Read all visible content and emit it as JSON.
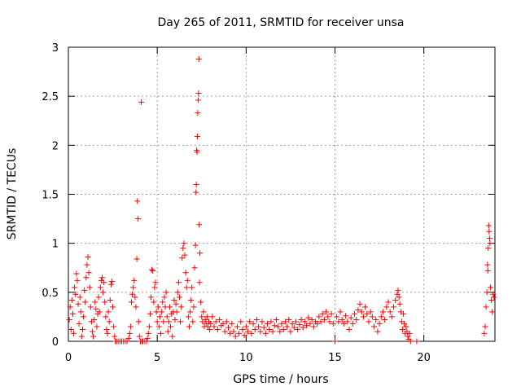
{
  "chart_data": {
    "type": "scatter",
    "title": "Day 265 of 2011, SRMTID for receiver unsa",
    "xlabel": "GPS time / hours",
    "ylabel": "SRMTID / TECUs",
    "xlim": [
      0,
      24
    ],
    "ylim": [
      0,
      3
    ],
    "xticks": [
      0,
      5,
      10,
      15,
      20
    ],
    "yticks": [
      0,
      0.5,
      1,
      1.5,
      2,
      2.5,
      3
    ],
    "xtick_labels": [
      "0",
      "5",
      "10",
      "15",
      "20"
    ],
    "ytick_labels": [
      "0",
      "0.5",
      "1",
      "1.5",
      "2",
      "2.5",
      "3"
    ],
    "grid": true,
    "marker": "+",
    "series": [
      {
        "name": "SRMTID",
        "color": "#ff0000",
        "points": [
          [
            0.05,
            0.22
          ],
          [
            0.1,
            0.35
          ],
          [
            0.15,
            0.12
          ],
          [
            0.2,
            0.42
          ],
          [
            0.25,
            0.28
          ],
          [
            0.3,
            0.08
          ],
          [
            0.35,
            0.55
          ],
          [
            0.4,
            0.48
          ],
          [
            0.45,
            0.69
          ],
          [
            0.5,
            0.62
          ],
          [
            0.55,
            0.38
          ],
          [
            0.6,
            0.18
          ],
          [
            0.65,
            0.45
          ],
          [
            0.7,
            0.3
          ],
          [
            0.75,
            0.05
          ],
          [
            0.8,
            0.12
          ],
          [
            0.85,
            0.25
          ],
          [
            0.9,
            0.52
          ],
          [
            0.95,
            0.4
          ],
          [
            1.0,
            0.65
          ],
          [
            1.05,
            0.78
          ],
          [
            1.1,
            0.86
          ],
          [
            1.15,
            0.7
          ],
          [
            1.2,
            0.55
          ],
          [
            1.25,
            0.35
          ],
          [
            1.3,
            0.2
          ],
          [
            1.35,
            0.1
          ],
          [
            1.4,
            0.05
          ],
          [
            1.45,
            0.22
          ],
          [
            1.5,
            0.4
          ],
          [
            1.55,
            0.33
          ],
          [
            1.6,
            0.15
          ],
          [
            1.65,
            0.28
          ],
          [
            1.7,
            0.45
          ],
          [
            1.75,
            0.3
          ],
          [
            1.8,
            0.55
          ],
          [
            1.85,
            0.62
          ],
          [
            1.9,
            0.65
          ],
          [
            1.95,
            0.5
          ],
          [
            2.0,
            0.6
          ],
          [
            2.05,
            0.4
          ],
          [
            2.1,
            0.25
          ],
          [
            2.15,
            0.12
          ],
          [
            2.2,
            0.08
          ],
          [
            2.25,
            0.3
          ],
          [
            2.3,
            0.2
          ],
          [
            2.35,
            0.42
          ],
          [
            2.4,
            0.58
          ],
          [
            2.45,
            0.61
          ],
          [
            2.5,
            0.35
          ],
          [
            2.55,
            0.15
          ],
          [
            2.6,
            0.05
          ],
          [
            2.65,
            0.0
          ],
          [
            2.7,
            0.0
          ],
          [
            2.8,
            0.0
          ],
          [
            2.9,
            0.0
          ],
          [
            3.0,
            0.0
          ],
          [
            3.1,
            0.0
          ],
          [
            3.2,
            0.0
          ],
          [
            3.3,
            0.0
          ],
          [
            3.4,
            0.03
          ],
          [
            3.45,
            0.08
          ],
          [
            3.5,
            0.15
          ],
          [
            3.55,
            0.4
          ],
          [
            3.6,
            0.48
          ],
          [
            3.65,
            0.55
          ],
          [
            3.7,
            0.62
          ],
          [
            3.75,
            0.45
          ],
          [
            3.8,
            0.35
          ],
          [
            3.85,
            0.84
          ],
          [
            3.88,
            1.43
          ],
          [
            3.92,
            1.25
          ],
          [
            3.95,
            0.2
          ],
          [
            4.0,
            0.05
          ],
          [
            4.05,
            0.0
          ],
          [
            4.1,
            2.44
          ],
          [
            4.15,
            0.0
          ],
          [
            4.2,
            0.0
          ],
          [
            4.3,
            0.0
          ],
          [
            4.4,
            0.0
          ],
          [
            4.45,
            0.03
          ],
          [
            4.5,
            0.08
          ],
          [
            4.55,
            0.15
          ],
          [
            4.6,
            0.28
          ],
          [
            4.65,
            0.45
          ],
          [
            4.7,
            0.73
          ],
          [
            4.75,
            0.72
          ],
          [
            4.8,
            0.4
          ],
          [
            4.85,
            0.55
          ],
          [
            4.9,
            0.6
          ],
          [
            4.95,
            0.3
          ],
          [
            5.0,
            0.2
          ],
          [
            5.05,
            0.35
          ],
          [
            5.1,
            0.15
          ],
          [
            5.15,
            0.25
          ],
          [
            5.2,
            0.08
          ],
          [
            5.25,
            0.3
          ],
          [
            5.3,
            0.4
          ],
          [
            5.35,
            0.2
          ],
          [
            5.4,
            0.45
          ],
          [
            5.45,
            0.35
          ],
          [
            5.5,
            0.5
          ],
          [
            5.55,
            0.25
          ],
          [
            5.6,
            0.1
          ],
          [
            5.65,
            0.2
          ],
          [
            5.7,
            0.35
          ],
          [
            5.75,
            0.15
          ],
          [
            5.8,
            0.28
          ],
          [
            5.85,
            0.05
          ],
          [
            5.9,
            0.3
          ],
          [
            5.95,
            0.42
          ],
          [
            6.0,
            0.22
          ],
          [
            6.05,
            0.38
          ],
          [
            6.1,
            0.3
          ],
          [
            6.15,
            0.5
          ],
          [
            6.2,
            0.6
          ],
          [
            6.25,
            0.45
          ],
          [
            6.3,
            0.2
          ],
          [
            6.35,
            0.35
          ],
          [
            6.4,
            0.85
          ],
          [
            6.45,
            0.95
          ],
          [
            6.5,
            1.0
          ],
          [
            6.55,
            0.88
          ],
          [
            6.6,
            0.7
          ],
          [
            6.65,
            0.55
          ],
          [
            6.7,
            0.62
          ],
          [
            6.75,
            0.25
          ],
          [
            6.8,
            0.15
          ],
          [
            6.85,
            0.3
          ],
          [
            6.9,
            0.42
          ],
          [
            6.95,
            0.55
          ],
          [
            7.0,
            0.2
          ],
          [
            7.05,
            0.35
          ],
          [
            7.1,
            0.75
          ],
          [
            7.15,
            0.98
          ],
          [
            7.18,
            1.52
          ],
          [
            7.2,
            1.6
          ],
          [
            7.22,
            1.95
          ],
          [
            7.24,
            1.93
          ],
          [
            7.26,
            2.09
          ],
          [
            7.28,
            2.33
          ],
          [
            7.3,
            2.46
          ],
          [
            7.32,
            2.53
          ],
          [
            7.34,
            2.88
          ],
          [
            7.36,
            1.19
          ],
          [
            7.38,
            0.6
          ],
          [
            7.4,
            0.9
          ],
          [
            7.45,
            0.4
          ],
          [
            7.5,
            0.25
          ],
          [
            7.55,
            0.2
          ],
          [
            7.6,
            0.3
          ],
          [
            7.65,
            0.15
          ],
          [
            7.7,
            0.22
          ],
          [
            7.75,
            0.18
          ],
          [
            7.8,
            0.25
          ],
          [
            7.85,
            0.15
          ],
          [
            7.9,
            0.2
          ],
          [
            7.95,
            0.12
          ],
          [
            8.0,
            0.18
          ],
          [
            8.1,
            0.25
          ],
          [
            8.2,
            0.15
          ],
          [
            8.3,
            0.2
          ],
          [
            8.4,
            0.12
          ],
          [
            8.5,
            0.22
          ],
          [
            8.6,
            0.16
          ],
          [
            8.7,
            0.18
          ],
          [
            8.8,
            0.1
          ],
          [
            8.9,
            0.2
          ],
          [
            9.0,
            0.14
          ],
          [
            9.1,
            0.08
          ],
          [
            9.2,
            0.18
          ],
          [
            9.3,
            0.1
          ],
          [
            9.4,
            0.05
          ],
          [
            9.5,
            0.15
          ],
          [
            9.6,
            0.08
          ],
          [
            9.7,
            0.2
          ],
          [
            9.8,
            0.12
          ],
          [
            9.9,
            0.06
          ],
          [
            10.0,
            0.15
          ],
          [
            10.1,
            0.1
          ],
          [
            10.2,
            0.2
          ],
          [
            10.3,
            0.08
          ],
          [
            10.4,
            0.18
          ],
          [
            10.5,
            0.12
          ],
          [
            10.6,
            0.22
          ],
          [
            10.7,
            0.15
          ],
          [
            10.8,
            0.1
          ],
          [
            10.9,
            0.2
          ],
          [
            11.0,
            0.14
          ],
          [
            11.1,
            0.08
          ],
          [
            11.2,
            0.18
          ],
          [
            11.3,
            0.12
          ],
          [
            11.4,
            0.2
          ],
          [
            11.5,
            0.1
          ],
          [
            11.6,
            0.16
          ],
          [
            11.7,
            0.22
          ],
          [
            11.8,
            0.15
          ],
          [
            11.9,
            0.1
          ],
          [
            12.0,
            0.18
          ],
          [
            12.1,
            0.12
          ],
          [
            12.2,
            0.2
          ],
          [
            12.3,
            0.15
          ],
          [
            12.4,
            0.22
          ],
          [
            12.5,
            0.1
          ],
          [
            12.6,
            0.18
          ],
          [
            12.7,
            0.14
          ],
          [
            12.8,
            0.2
          ],
          [
            12.9,
            0.12
          ],
          [
            13.0,
            0.17
          ],
          [
            13.1,
            0.22
          ],
          [
            13.2,
            0.14
          ],
          [
            13.3,
            0.2
          ],
          [
            13.4,
            0.16
          ],
          [
            13.5,
            0.24
          ],
          [
            13.6,
            0.18
          ],
          [
            13.7,
            0.22
          ],
          [
            13.8,
            0.15
          ],
          [
            13.9,
            0.2
          ],
          [
            14.0,
            0.18
          ],
          [
            14.1,
            0.25
          ],
          [
            14.2,
            0.2
          ],
          [
            14.3,
            0.28
          ],
          [
            14.4,
            0.22
          ],
          [
            14.5,
            0.3
          ],
          [
            14.6,
            0.25
          ],
          [
            14.7,
            0.2
          ],
          [
            14.8,
            0.28
          ],
          [
            14.9,
            0.18
          ],
          [
            15.0,
            0.0
          ],
          [
            15.1,
            0.25
          ],
          [
            15.2,
            0.2
          ],
          [
            15.3,
            0.3
          ],
          [
            15.4,
            0.22
          ],
          [
            15.5,
            0.18
          ],
          [
            15.6,
            0.26
          ],
          [
            15.7,
            0.2
          ],
          [
            15.8,
            0.12
          ],
          [
            15.9,
            0.24
          ],
          [
            16.0,
            0.18
          ],
          [
            16.1,
            0.28
          ],
          [
            16.2,
            0.22
          ],
          [
            16.3,
            0.32
          ],
          [
            16.4,
            0.38
          ],
          [
            16.5,
            0.3
          ],
          [
            16.6,
            0.25
          ],
          [
            16.7,
            0.35
          ],
          [
            16.8,
            0.28
          ],
          [
            16.9,
            0.2
          ],
          [
            17.0,
            0.3
          ],
          [
            17.1,
            0.25
          ],
          [
            17.2,
            0.15
          ],
          [
            17.3,
            0.22
          ],
          [
            17.4,
            0.1
          ],
          [
            17.5,
            0.18
          ],
          [
            17.6,
            0.25
          ],
          [
            17.7,
            0.3
          ],
          [
            17.8,
            0.22
          ],
          [
            17.9,
            0.35
          ],
          [
            18.0,
            0.4
          ],
          [
            18.1,
            0.3
          ],
          [
            18.2,
            0.25
          ],
          [
            18.3,
            0.35
          ],
          [
            18.4,
            0.42
          ],
          [
            18.5,
            0.48
          ],
          [
            18.55,
            0.52
          ],
          [
            18.6,
            0.45
          ],
          [
            18.65,
            0.38
          ],
          [
            18.7,
            0.3
          ],
          [
            18.75,
            0.2
          ],
          [
            18.8,
            0.12
          ],
          [
            18.85,
            0.28
          ],
          [
            18.9,
            0.18
          ],
          [
            18.95,
            0.08
          ],
          [
            19.0,
            0.15
          ],
          [
            19.05,
            0.1
          ],
          [
            19.1,
            0.05
          ],
          [
            19.15,
            0.02
          ],
          [
            19.2,
            0.08
          ],
          [
            19.25,
            0.0
          ],
          [
            19.6,
            0.0
          ],
          [
            23.4,
            0.08
          ],
          [
            23.45,
            0.15
          ],
          [
            23.5,
            0.35
          ],
          [
            23.55,
            0.5
          ],
          [
            23.58,
            0.78
          ],
          [
            23.6,
            0.72
          ],
          [
            23.62,
            0.95
          ],
          [
            23.65,
            1.18
          ],
          [
            23.67,
            1.12
          ],
          [
            23.7,
            1.05
          ],
          [
            23.72,
            1.0
          ],
          [
            23.75,
            0.55
          ],
          [
            23.8,
            0.42
          ],
          [
            23.85,
            0.3
          ],
          [
            23.9,
            0.48
          ],
          [
            23.95,
            0.45
          ]
        ]
      }
    ]
  }
}
